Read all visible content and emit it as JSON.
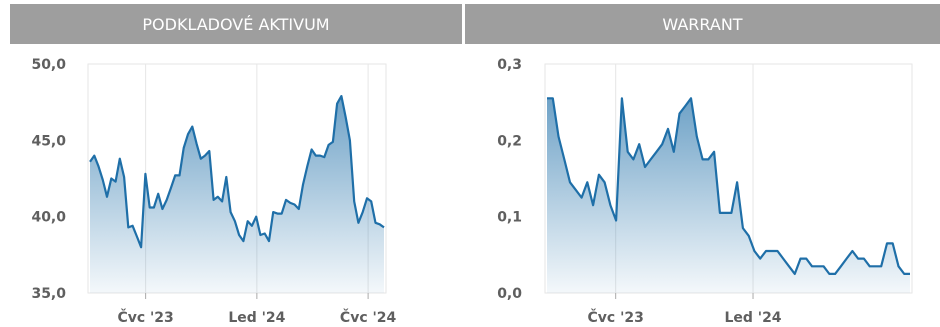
{
  "panels": {
    "left_title": "PODKLADOVÉ AKTIVUM",
    "right_title": "WARRANT"
  },
  "chart_data": [
    {
      "type": "area",
      "title": "PODKLADOVÉ AKTIVUM",
      "ylim": [
        35,
        50
      ],
      "y_ticks": [
        "35,0",
        "40,0",
        "45,0",
        "50,0"
      ],
      "y_tick_values": [
        35,
        40,
        45,
        50
      ],
      "x_range": [
        0,
        74
      ],
      "x_ticks": [
        "Čvc '23",
        "Led '24",
        "Čvc '24"
      ],
      "x_tick_positions": [
        14,
        42,
        70
      ],
      "grid": "vertical at x ticks",
      "color": "#1f6fa8",
      "series": [
        {
          "values": [
            43.6,
            44.0,
            43.3,
            42.4,
            41.3,
            42.5,
            42.3,
            43.8,
            42.6,
            39.3,
            39.4,
            38.7,
            38.0,
            42.8,
            40.6,
            40.6,
            41.5,
            40.5,
            41.1,
            41.9,
            42.7,
            42.7,
            44.5,
            45.4,
            45.9,
            44.8,
            43.8,
            44.0,
            44.3,
            41.1,
            41.3,
            41.0,
            42.6,
            40.3,
            39.7,
            38.8,
            38.4,
            39.7,
            39.4,
            40.0,
            38.8,
            38.9,
            38.4,
            40.3,
            40.2,
            40.2,
            41.1,
            40.9,
            40.8,
            40.5,
            42.1,
            43.3,
            44.4,
            44.0,
            44.0,
            43.9,
            44.7,
            44.9,
            47.4,
            47.9,
            46.5,
            45.0,
            41.0,
            39.6,
            40.3,
            41.2,
            41.0,
            39.6,
            39.5,
            39.3
          ]
        }
      ]
    },
    {
      "type": "area",
      "title": "WARRANT",
      "ylim": [
        0,
        0.3
      ],
      "y_ticks": [
        "0,0",
        "0,1",
        "0,2",
        "0,3"
      ],
      "y_tick_values": [
        0,
        0.1,
        0.2,
        0.3
      ],
      "x_range": [
        0,
        74
      ],
      "x_ticks": [
        "Čvc '23",
        "Led '24"
      ],
      "x_tick_positions": [
        14,
        42
      ],
      "grid": "vertical at x ticks",
      "color": "#1f6fa8",
      "series": [
        {
          "values": [
            0.255,
            0.255,
            0.205,
            0.175,
            0.145,
            0.135,
            0.125,
            0.145,
            0.115,
            0.155,
            0.145,
            0.115,
            0.095,
            0.255,
            0.185,
            0.175,
            0.195,
            0.165,
            0.175,
            0.185,
            0.195,
            0.215,
            0.185,
            0.235,
            0.245,
            0.255,
            0.205,
            0.175,
            0.175,
            0.185,
            0.105,
            0.105,
            0.105,
            0.145,
            0.085,
            0.075,
            0.055,
            0.045,
            0.055,
            0.055,
            0.055,
            0.045,
            0.035,
            0.025,
            0.045,
            0.045,
            0.035,
            0.035,
            0.035,
            0.025,
            0.025,
            0.035,
            0.045,
            0.055,
            0.045,
            0.045,
            0.035,
            0.035,
            0.035,
            0.065,
            0.065,
            0.035,
            0.025,
            0.025
          ]
        }
      ]
    }
  ]
}
